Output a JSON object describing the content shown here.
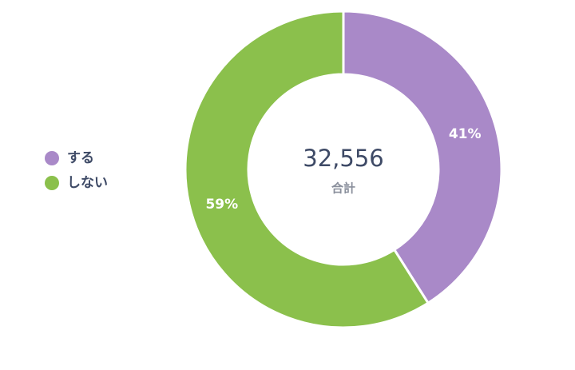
{
  "chart_data": {
    "type": "donut",
    "categories": [
      "する",
      "しない"
    ],
    "values": [
      41,
      59
    ],
    "value_labels": [
      "41%",
      "59%"
    ],
    "colors": [
      "#a989c8",
      "#8bc04c"
    ],
    "total": {
      "value": 32556,
      "label": "32,556"
    },
    "total_caption": "合計"
  }
}
